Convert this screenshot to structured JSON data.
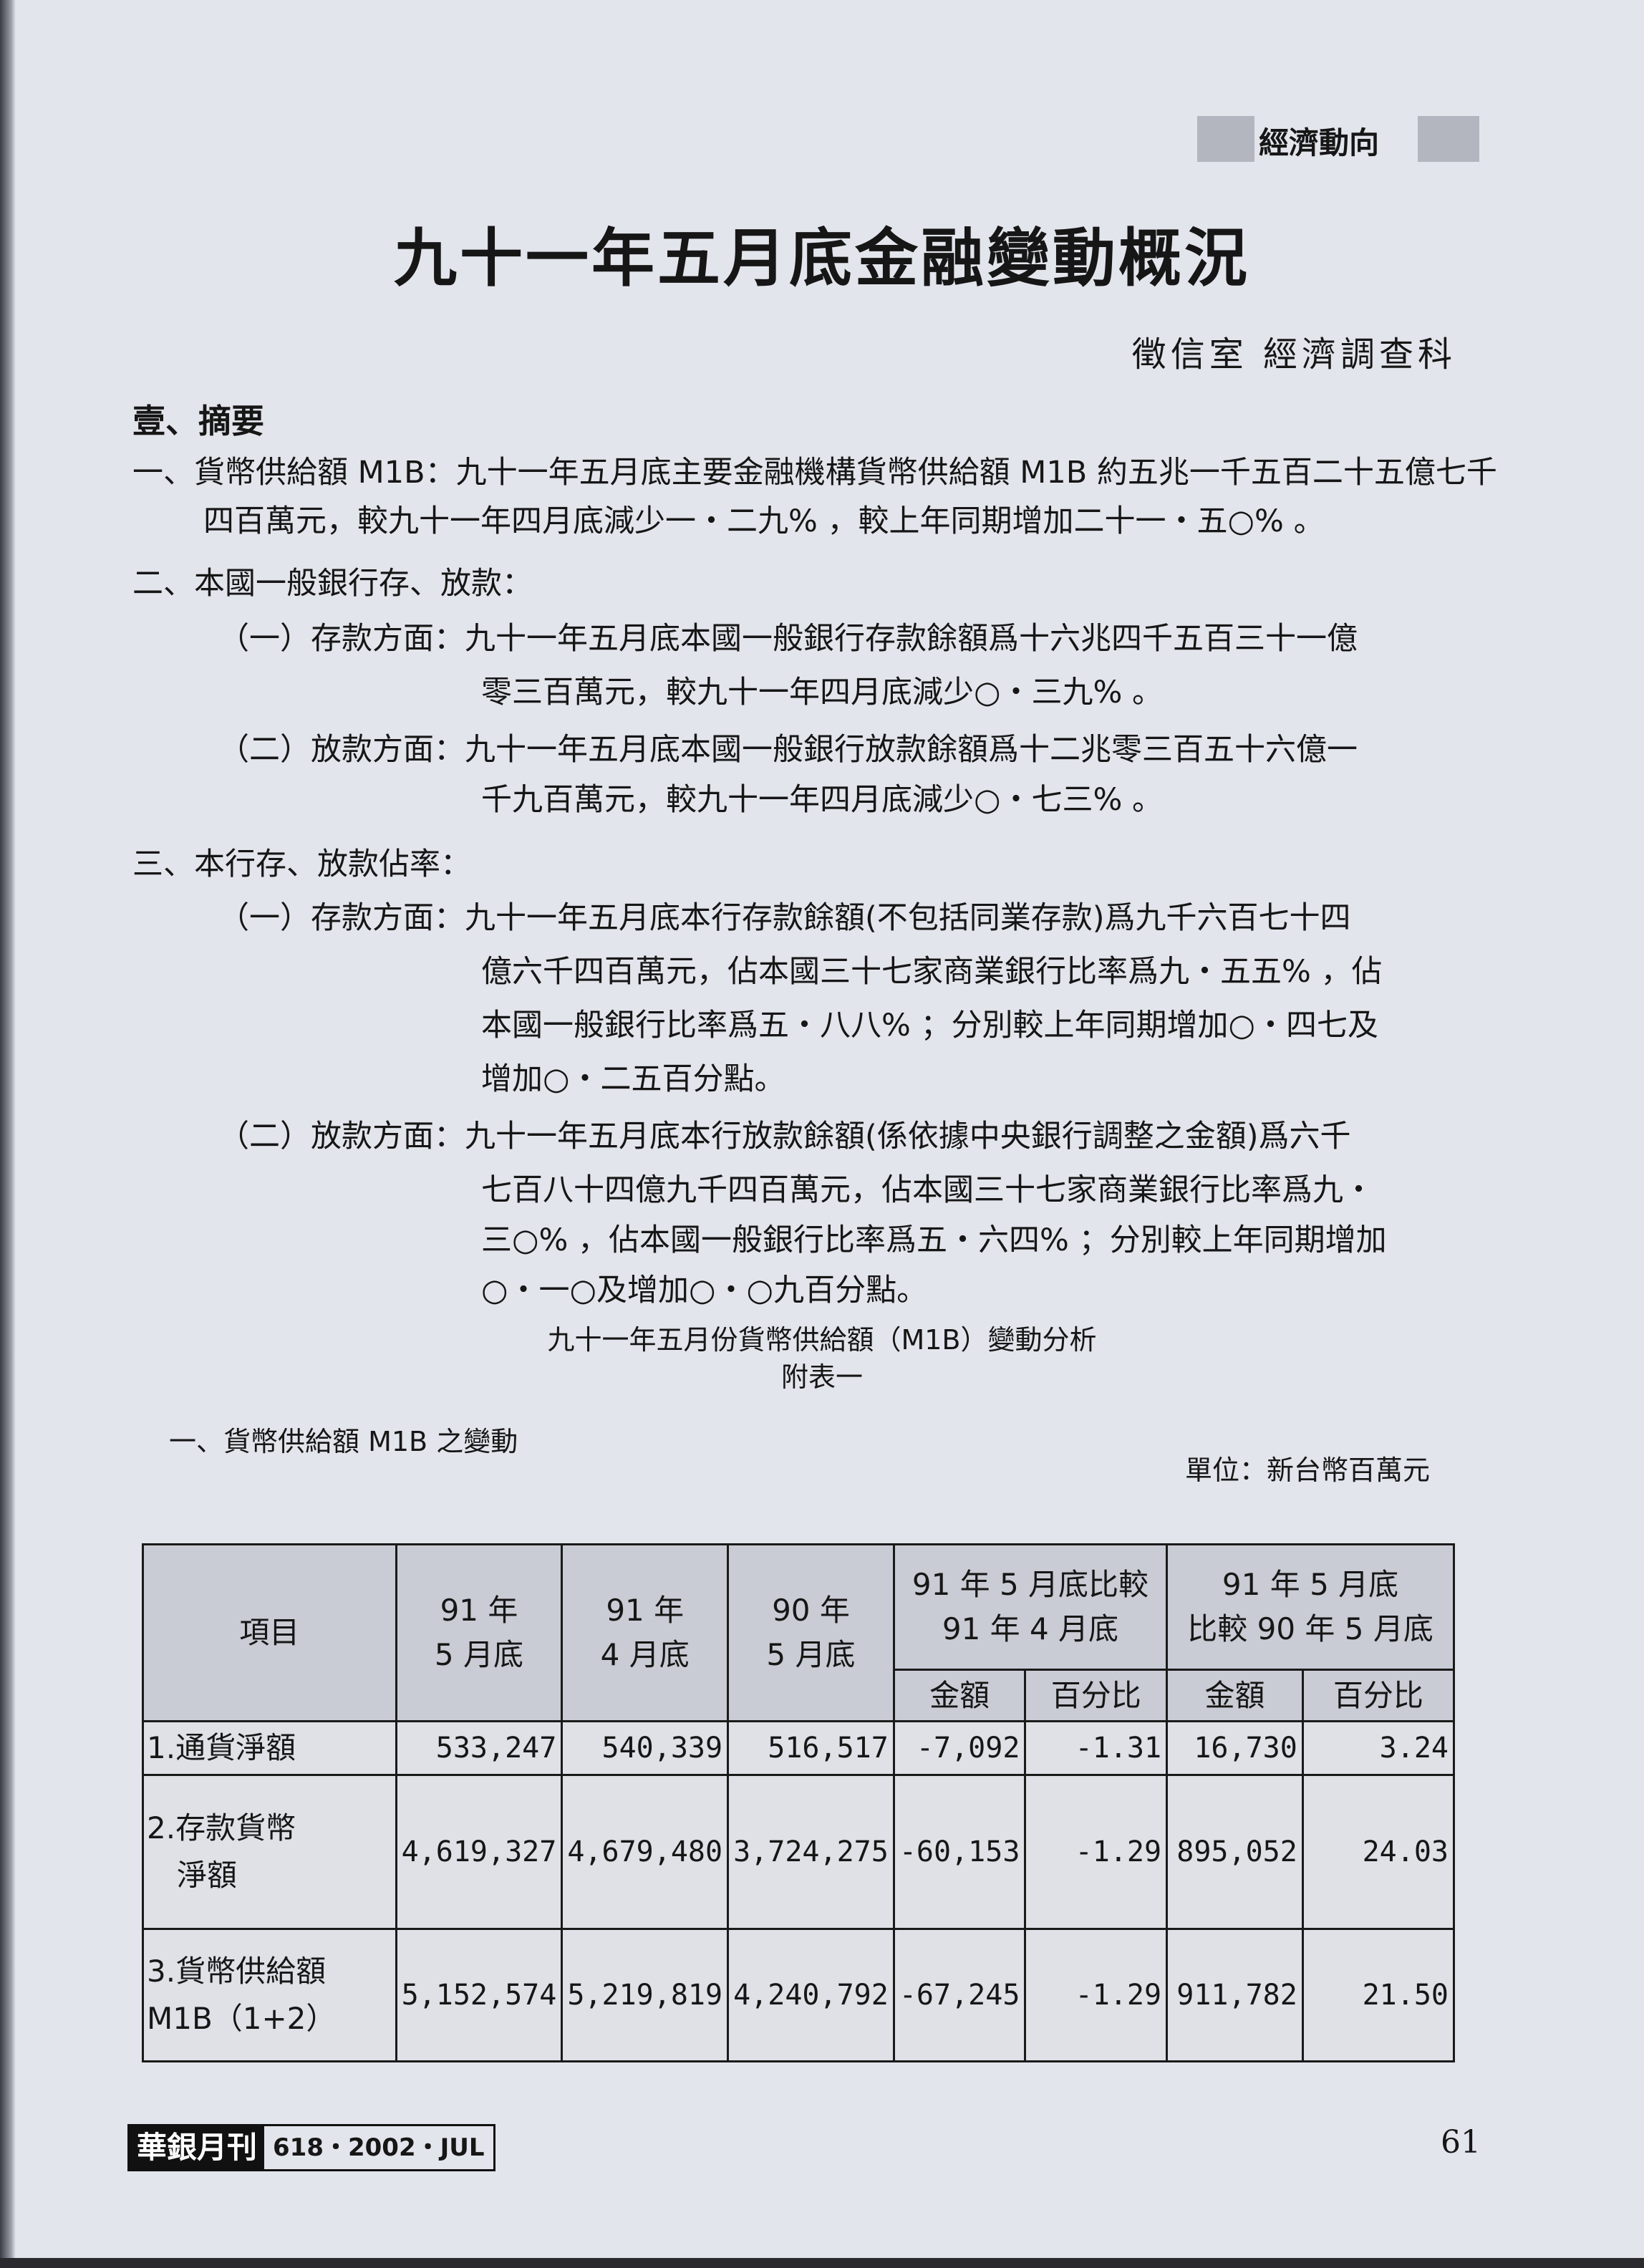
{
  "header": {
    "section_tab": "經濟動向"
  },
  "title": "九十一年五月底金融變動概況",
  "author": "徵信室 經濟調查科",
  "body": {
    "heading": "壹、摘要",
    "lines": [
      "一、貨幣供給額 M1B：九十一年五月底主要金融機構貨幣供給額 M1B 約五兆一千五百二十五億七千",
      "四百萬元，較九十一年四月底減少一・二九% ，較上年同期增加二十一・五○% 。",
      "二、本國一般銀行存、放款：",
      "（一）存款方面：九十一年五月底本國一般銀行存款餘額爲十六兆四千五百三十一億",
      "零三百萬元，較九十一年四月底減少○・三九% 。",
      "（二）放款方面：九十一年五月底本國一般銀行放款餘額爲十二兆零三百五十六億一",
      "千九百萬元，較九十一年四月底減少○・七三% 。",
      "三、本行存、放款佔率：",
      "（一）存款方面：九十一年五月底本行存款餘額(不包括同業存款)爲九千六百七十四",
      "億六千四百萬元，佔本國三十七家商業銀行比率爲九・五五% ，佔",
      "本國一般銀行比率爲五・八八% ；分別較上年同期增加○・四七及",
      "增加○・二五百分點。",
      "（二）放款方面：九十一年五月底本行放款餘額(係依據中央銀行調整之金額)爲六千",
      "七百八十四億九千四百萬元，佔本國三十七家商業銀行比率爲九・",
      "三○% ，佔本國一般銀行比率爲五・六四% ；分別較上年同期增加",
      "○・一○及增加○・○九百分點。"
    ]
  },
  "table_section": {
    "caption": "九十一年五月份貨幣供給額（M1B）變動分析",
    "appendix": "附表一",
    "subtitle": "一、貨幣供給額 M1B 之變動",
    "unit": "單位：新台幣百萬元",
    "headers": {
      "item": "項目",
      "c1": [
        "91 年",
        "5 月底"
      ],
      "c2": [
        "91 年",
        "4 月底"
      ],
      "c3": [
        "90 年",
        "5 月底"
      ],
      "g1": [
        "91 年 5 月底比較",
        "91 年 4 月底"
      ],
      "g2": [
        "91 年 5 月底",
        "比較 90 年 5 月底"
      ],
      "amount": "金額",
      "percent": "百分比"
    },
    "rows": [
      {
        "item": [
          "1.通貨淨額"
        ],
        "values": [
          "533,247",
          "540,339",
          "516,517",
          "-7,092",
          "-1.31",
          "16,730",
          "3.24"
        ]
      },
      {
        "item": [
          "2.存款貨幣",
          "　淨額"
        ],
        "values": [
          "4,619,327",
          "4,679,480",
          "3,724,275",
          "-60,153",
          "-1.29",
          "895,052",
          "24.03"
        ]
      },
      {
        "item": [
          "3.貨幣供給額",
          "M1B（1+2）"
        ],
        "values": [
          "5,152,574",
          "5,219,819",
          "4,240,792",
          "-67,245",
          "-1.29",
          "911,782",
          "21.50"
        ]
      }
    ]
  },
  "footer": {
    "brand": "華銀月刊",
    "issue": "618・2002・JUL",
    "page": "61"
  }
}
